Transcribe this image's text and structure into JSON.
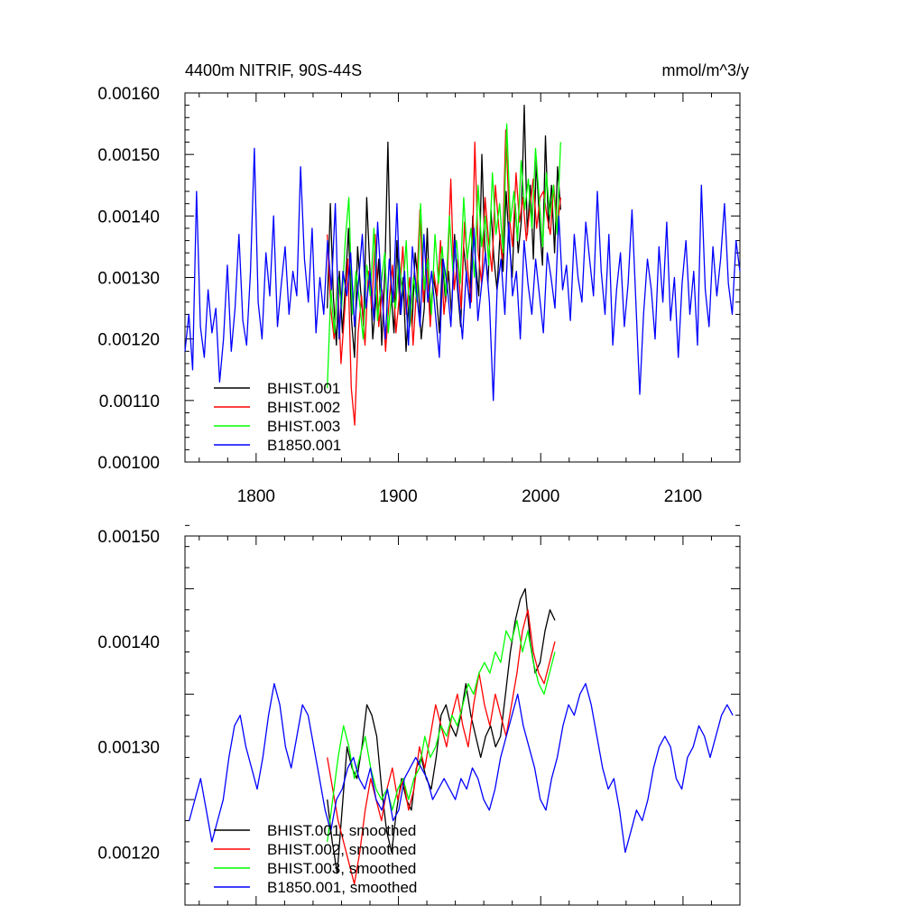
{
  "chart_data": [
    {
      "type": "line",
      "title": "4400m NITRIF, 90S-44S",
      "units": "mmol/m^3/y",
      "xlim": [
        1750,
        2140
      ],
      "ylim": [
        0.001,
        0.0016
      ],
      "x_ticks": [
        "1800",
        "1900",
        "2000",
        "2100"
      ],
      "y_ticks": [
        "0.00100",
        "0.00110",
        "0.00120",
        "0.00130",
        "0.00140",
        "0.00150",
        "0.00160"
      ],
      "legend_position": "bottom-left",
      "series": [
        {
          "name": "BHIST.001",
          "color": "#000000",
          "x_start": 1850,
          "x_end": 2014,
          "values": [
            0.00125,
            0.00142,
            0.00127,
            0.00119,
            0.00131,
            0.00121,
            0.00129,
            0.00138,
            0.00123,
            0.00117,
            0.00135,
            0.00128,
            0.00122,
            0.00143,
            0.00132,
            0.0012,
            0.00126,
            0.00133,
            0.00119,
            0.00131,
            0.00152,
            0.00128,
            0.00121,
            0.00136,
            0.00124,
            0.0013,
            0.00118,
            0.00127,
            0.00122,
            0.00134,
            0.00129,
            0.0012,
            0.00125,
            0.00138,
            0.00123,
            0.0013,
            0.00127,
            0.00121,
            0.00133,
            0.00126,
            0.00131,
            0.00124,
            0.00137,
            0.00128,
            0.00122,
            0.00135,
            0.0013,
            0.00126,
            0.0014,
            0.00132,
            0.00127,
            0.0015,
            0.00135,
            0.00129,
            0.00141,
            0.00133,
            0.00128,
            0.00137,
            0.00131,
            0.00144,
            0.00136,
            0.0013,
            0.00142,
            0.00134,
            0.00139,
            0.00158,
            0.00137,
            0.00145,
            0.00133,
            0.00149,
            0.00139,
            0.00132,
            0.00153,
            0.00138,
            0.00145,
            0.00134,
            0.00148,
            0.00141
          ]
        },
        {
          "name": "BHIST.002",
          "color": "#ff0000",
          "x_start": 1850,
          "x_end": 2014,
          "values": [
            0.00137,
            0.00125,
            0.0012,
            0.0013,
            0.00116,
            0.00124,
            0.00133,
            0.00112,
            0.00106,
            0.00121,
            0.00127,
            0.00119,
            0.00131,
            0.00125,
            0.00137,
            0.00122,
            0.00128,
            0.00118,
            0.00126,
            0.00132,
            0.00121,
            0.00127,
            0.00135,
            0.00124,
            0.0013,
            0.00119,
            0.00128,
            0.00141,
            0.00126,
            0.00133,
            0.00122,
            0.00131,
            0.00127,
            0.00136,
            0.00124,
            0.0013,
            0.00146,
            0.00128,
            0.00133,
            0.00125,
            0.00139,
            0.00131,
            0.00126,
            0.00152,
            0.00134,
            0.00129,
            0.00143,
            0.00136,
            0.00131,
            0.00145,
            0.00138,
            0.00133,
            0.00154,
            0.0014,
            0.00135,
            0.00147,
            0.00139,
            0.00143,
            0.00136,
            0.00141,
            0.00146,
            0.00138,
            0.00143,
            0.00144,
            0.0014,
            0.00137,
            0.00145,
            0.00138,
            0.00143
          ]
        },
        {
          "name": "BHIST.003",
          "color": "#00ff00",
          "x_start": 1850,
          "x_end": 2014,
          "values": [
            0.00112,
            0.00128,
            0.00121,
            0.0013,
            0.00125,
            0.00136,
            0.00143,
            0.00124,
            0.00131,
            0.00126,
            0.0012,
            0.00132,
            0.00127,
            0.00138,
            0.00123,
            0.00129,
            0.00134,
            0.00121,
            0.00128,
            0.00125,
            0.00133,
            0.00127,
            0.00136,
            0.00122,
            0.0013,
            0.00126,
            0.00142,
            0.00128,
            0.00133,
            0.00124,
            0.00137,
            0.00129,
            0.00135,
            0.00127,
            0.0014,
            0.00131,
            0.00136,
            0.00129,
            0.00143,
            0.00133,
            0.00138,
            0.0013,
            0.00145,
            0.00135,
            0.0014,
            0.00132,
            0.00147,
            0.00137,
            0.00142,
            0.00134,
            0.00155,
            0.00139,
            0.00144,
            0.00136,
            0.00149,
            0.00141,
            0.00146,
            0.00138,
            0.00151,
            0.00143,
            0.00135,
            0.00147,
            0.0014,
            0.00145,
            0.00137,
            0.00152
          ]
        },
        {
          "name": "B1850.001",
          "color": "#0000ff",
          "x_start": 1750,
          "x_end": 2140,
          "values": [
            0.00118,
            0.00124,
            0.00115,
            0.00144,
            0.00122,
            0.00117,
            0.00128,
            0.00121,
            0.00125,
            0.00113,
            0.0012,
            0.00132,
            0.00118,
            0.00125,
            0.00137,
            0.00123,
            0.00119,
            0.00131,
            0.00151,
            0.00126,
            0.0012,
            0.00134,
            0.00127,
            0.0014,
            0.00122,
            0.00129,
            0.00135,
            0.00124,
            0.00131,
            0.00127,
            0.00148,
            0.00133,
            0.00126,
            0.00138,
            0.00121,
            0.0013,
            0.00124,
            0.00136,
            0.00128,
            0.00142,
            0.0012,
            0.00131,
            0.00127,
            0.00134,
            0.00122,
            0.00129,
            0.00137,
            0.00125,
            0.00131,
            0.00123,
            0.00139,
            0.00128,
            0.0012,
            0.00133,
            0.00126,
            0.00142,
            0.00124,
            0.00131,
            0.00119,
            0.00135,
            0.00128,
            0.00122,
            0.00137,
            0.00126,
            0.00131,
            0.00124,
            0.00117,
            0.00133,
            0.00129,
            0.00122,
            0.00136,
            0.00127,
            0.0012,
            0.00131,
            0.00125,
            0.00138,
            0.00123,
            0.00129,
            0.00134,
            0.00126,
            0.0011,
            0.00128,
            0.00133,
            0.00124,
            0.00139,
            0.00127,
            0.00131,
            0.0012,
            0.00136,
            0.00129,
            0.00124,
            0.00133,
            0.00127,
            0.00121,
            0.00134,
            0.0013,
            0.00125,
            0.0014,
            0.00128,
            0.00132,
            0.00123,
            0.00137,
            0.0013,
            0.00126,
            0.00139,
            0.00133,
            0.00127,
            0.00144,
            0.00131,
            0.00124,
            0.00137,
            0.00119,
            0.00128,
            0.00134,
            0.00122,
            0.00129,
            0.00141,
            0.00126,
            0.00111,
            0.00124,
            0.00133,
            0.00128,
            0.0012,
            0.00135,
            0.00126,
            0.00139,
            0.00123,
            0.0013,
            0.00117,
            0.00129,
            0.00136,
            0.00124,
            0.00131,
            0.00119,
            0.00145,
            0.00128,
            0.00122,
            0.00135,
            0.00127,
            0.00133,
            0.00142,
            0.00129,
            0.00124,
            0.00136,
            0.00131
          ]
        }
      ]
    },
    {
      "type": "line",
      "xlim": [
        1750,
        2140
      ],
      "ylim": [
        0.00115,
        0.0015
      ],
      "y_ticks": [
        "0.00120",
        "0.00130",
        "0.00140",
        "0.00150"
      ],
      "legend_position": "bottom-left",
      "series": [
        {
          "name": "BHIST.001, smoothed",
          "color": "#000000",
          "x_start": 1850,
          "x_end": 2010,
          "values": [
            0.00125,
            0.00121,
            0.00118,
            0.00124,
            0.0013,
            0.00128,
            0.00127,
            0.0013,
            0.00134,
            0.00133,
            0.00131,
            0.00126,
            0.00122,
            0.0012,
            0.00124,
            0.00127,
            0.00125,
            0.00124,
            0.00128,
            0.00129,
            0.00127,
            0.00126,
            0.00129,
            0.00133,
            0.00134,
            0.00132,
            0.00131,
            0.00133,
            0.00136,
            0.00133,
            0.00131,
            0.00129,
            0.00131,
            0.00132,
            0.0013,
            0.00131,
            0.00135,
            0.00139,
            0.00142,
            0.00144,
            0.00145,
            0.0014,
            0.00137,
            0.00138,
            0.00141,
            0.00143,
            0.00142
          ]
        },
        {
          "name": "BHIST.002, smoothed",
          "color": "#ff0000",
          "x_start": 1850,
          "x_end": 2010,
          "values": [
            0.00129,
            0.00126,
            0.00123,
            0.00121,
            0.00119,
            0.00117,
            0.0012,
            0.00124,
            0.00127,
            0.00125,
            0.00123,
            0.00126,
            0.00128,
            0.00125,
            0.00127,
            0.00124,
            0.00126,
            0.0013,
            0.00128,
            0.00131,
            0.00134,
            0.00132,
            0.0013,
            0.00133,
            0.00135,
            0.00132,
            0.0013,
            0.00134,
            0.00137,
            0.00134,
            0.00132,
            0.00135,
            0.00133,
            0.00131,
            0.00134,
            0.00137,
            0.00141,
            0.00143,
            0.00139,
            0.00137,
            0.00136,
            0.00138,
            0.0014
          ]
        },
        {
          "name": "BHIST.003, smoothed",
          "color": "#00ff00",
          "x_start": 1850,
          "x_end": 2010,
          "values": [
            0.00121,
            0.00125,
            0.00129,
            0.00132,
            0.0013,
            0.00127,
            0.00129,
            0.00131,
            0.00128,
            0.00126,
            0.00125,
            0.00126,
            0.00124,
            0.00126,
            0.00127,
            0.00125,
            0.00127,
            0.00128,
            0.00131,
            0.00129,
            0.0013,
            0.00132,
            0.00131,
            0.00133,
            0.00132,
            0.00134,
            0.00136,
            0.00135,
            0.00137,
            0.00138,
            0.00137,
            0.00139,
            0.00138,
            0.00141,
            0.0014,
            0.00142,
            0.00139,
            0.00141,
            0.00138,
            0.00136,
            0.00135,
            0.00137,
            0.00139
          ]
        },
        {
          "name": "B1850.001, smoothed",
          "color": "#0000ff",
          "x_start": 1753,
          "x_end": 2135,
          "values": [
            0.00123,
            0.00125,
            0.00127,
            0.00124,
            0.00121,
            0.00123,
            0.00125,
            0.00129,
            0.00132,
            0.00133,
            0.0013,
            0.00128,
            0.00126,
            0.00129,
            0.00133,
            0.00136,
            0.00134,
            0.0013,
            0.00128,
            0.00131,
            0.00134,
            0.00133,
            0.0013,
            0.00127,
            0.00124,
            0.00122,
            0.00125,
            0.00126,
            0.00128,
            0.00129,
            0.00127,
            0.00126,
            0.00128,
            0.00125,
            0.00124,
            0.00126,
            0.00123,
            0.00124,
            0.00127,
            0.00128,
            0.00129,
            0.00128,
            0.00127,
            0.00125,
            0.00126,
            0.00127,
            0.00126,
            0.00125,
            0.00127,
            0.00126,
            0.00128,
            0.00127,
            0.00125,
            0.00124,
            0.00126,
            0.00129,
            0.00131,
            0.00133,
            0.00135,
            0.00132,
            0.0013,
            0.00128,
            0.00125,
            0.00124,
            0.00127,
            0.00129,
            0.00132,
            0.00134,
            0.00133,
            0.00135,
            0.00136,
            0.00134,
            0.00131,
            0.00128,
            0.00126,
            0.00127,
            0.00124,
            0.0012,
            0.00122,
            0.00124,
            0.00123,
            0.00125,
            0.00128,
            0.0013,
            0.00131,
            0.0013,
            0.00127,
            0.00126,
            0.00129,
            0.0013,
            0.00132,
            0.00131,
            0.00129,
            0.00131,
            0.00133,
            0.00134,
            0.00133
          ]
        }
      ]
    }
  ]
}
